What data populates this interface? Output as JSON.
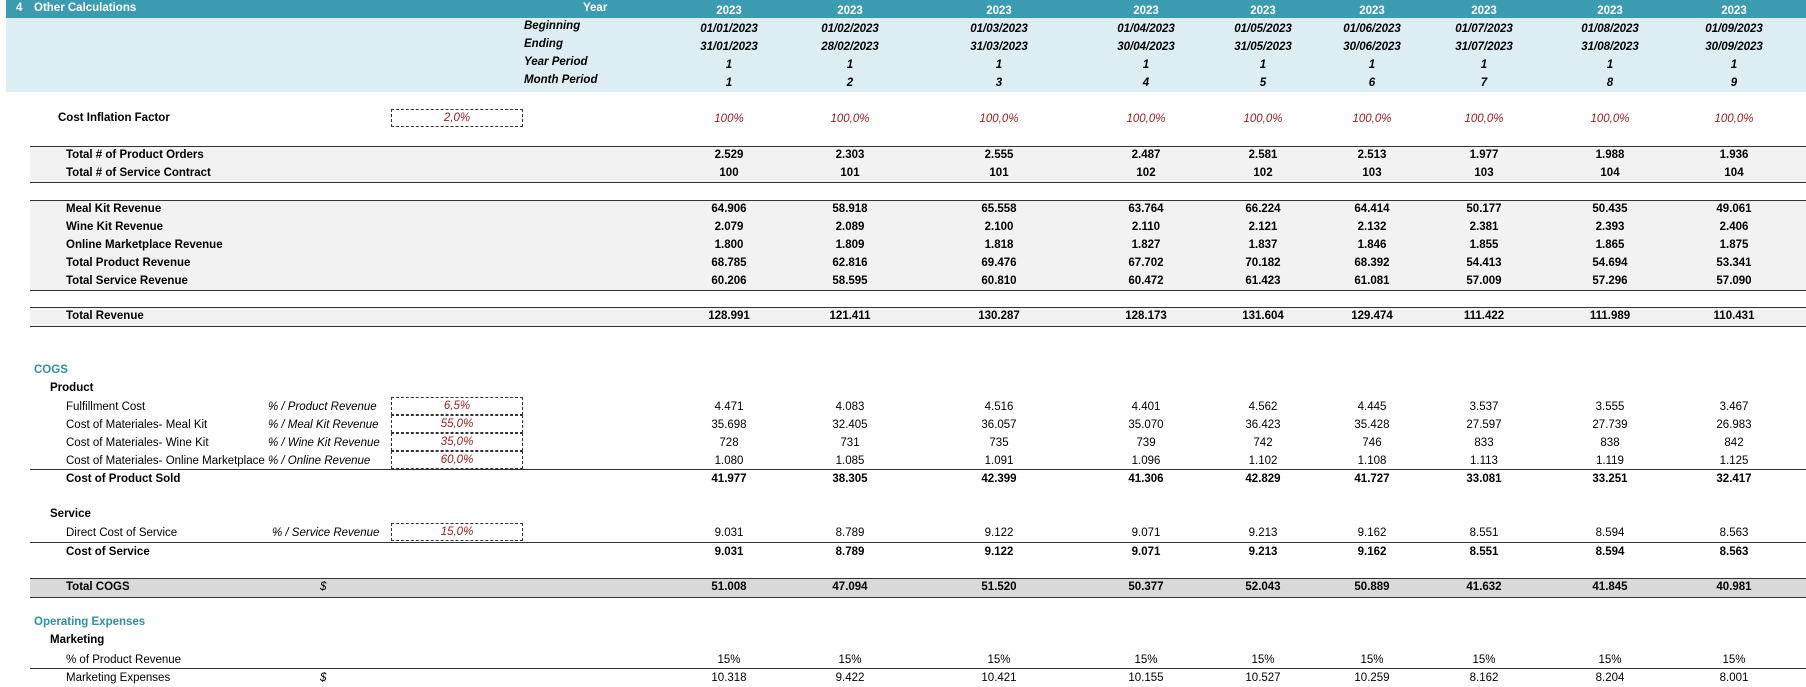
{
  "header": {
    "section_num": "4",
    "section_title": "Other Calculations",
    "year_label": "Year",
    "beginning_label": "Beginning",
    "ending_label": "Ending",
    "year_period_label": "Year Period",
    "month_period_label": "Month Period",
    "years": [
      "2023",
      "2023",
      "2023",
      "2023",
      "2023",
      "2023",
      "2023",
      "2023",
      "2023"
    ],
    "beginning": [
      "01/01/2023",
      "01/02/2023",
      "01/03/2023",
      "01/04/2023",
      "01/05/2023",
      "01/06/2023",
      "01/07/2023",
      "01/08/2023",
      "01/09/2023"
    ],
    "ending": [
      "31/01/2023",
      "28/02/2023",
      "31/03/2023",
      "30/04/2023",
      "31/05/2023",
      "30/06/2023",
      "31/07/2023",
      "31/08/2023",
      "30/09/2023"
    ],
    "year_period": [
      "1",
      "1",
      "1",
      "1",
      "1",
      "1",
      "1",
      "1",
      "1"
    ],
    "month_period": [
      "1",
      "2",
      "3",
      "4",
      "5",
      "6",
      "7",
      "8",
      "9"
    ]
  },
  "inflation": {
    "label": "Cost Inflation Factor",
    "input": "2,0%",
    "values": [
      "100%",
      "100,0%",
      "100,0%",
      "100,0%",
      "100,0%",
      "100,0%",
      "100,0%",
      "100,0%",
      "100,0%"
    ]
  },
  "orders": [
    {
      "label": "Total # of Product Orders",
      "values": [
        "2.529",
        "2.303",
        "2.555",
        "2.487",
        "2.581",
        "2.513",
        "1.977",
        "1.988",
        "1.936"
      ]
    },
    {
      "label": "Total # of Service Contract",
      "values": [
        "100",
        "101",
        "101",
        "102",
        "102",
        "103",
        "103",
        "104",
        "104"
      ]
    }
  ],
  "revenue": [
    {
      "label": "Meal Kit Revenue",
      "values": [
        "64.906",
        "58.918",
        "65.558",
        "63.764",
        "66.224",
        "64.414",
        "50.177",
        "50.435",
        "49.061"
      ]
    },
    {
      "label": "Wine Kit Revenue",
      "values": [
        "2.079",
        "2.089",
        "2.100",
        "2.110",
        "2.121",
        "2.132",
        "2.381",
        "2.393",
        "2.406"
      ]
    },
    {
      "label": "Online Marketplace Revenue",
      "values": [
        "1.800",
        "1.809",
        "1.818",
        "1.827",
        "1.837",
        "1.846",
        "1.855",
        "1.865",
        "1.875"
      ]
    },
    {
      "label": "Total Product Revenue",
      "values": [
        "68.785",
        "62.816",
        "69.476",
        "67.702",
        "70.182",
        "68.392",
        "54.413",
        "54.694",
        "53.341"
      ]
    },
    {
      "label": "Total Service Revenue",
      "values": [
        "60.206",
        "58.595",
        "60.810",
        "60.472",
        "61.423",
        "61.081",
        "57.009",
        "57.296",
        "57.090"
      ]
    }
  ],
  "total_revenue": {
    "label": "Total Revenue",
    "values": [
      "128.991",
      "121.411",
      "130.287",
      "128.173",
      "131.604",
      "129.474",
      "111.422",
      "111.989",
      "110.431"
    ]
  },
  "cogs": {
    "title": "COGS",
    "product_title": "Product",
    "product_rows": [
      {
        "label": "Fulfillment Cost",
        "basis": "% / Product Revenue",
        "input": "6,5%",
        "values": [
          "4.471",
          "4.083",
          "4.516",
          "4.401",
          "4.562",
          "4.445",
          "3.537",
          "3.555",
          "3.467"
        ]
      },
      {
        "label": "Cost of Materiales- Meal Kit",
        "basis": "% / Meal Kit Revenue",
        "input": "55,0%",
        "values": [
          "35.698",
          "32.405",
          "36.057",
          "35.070",
          "36.423",
          "35.428",
          "27.597",
          "27.739",
          "26.983"
        ]
      },
      {
        "label": "Cost of Materiales- Wine Kit",
        "basis": "% / Wine Kit Revenue",
        "input": "35,0%",
        "values": [
          "728",
          "731",
          "735",
          "739",
          "742",
          "746",
          "833",
          "838",
          "842"
        ]
      },
      {
        "label": "Cost of Materiales- Online Marketplace",
        "basis": "% / Online Revenue",
        "input": "60,0%",
        "values": [
          "1.080",
          "1.085",
          "1.091",
          "1.096",
          "1.102",
          "1.108",
          "1.113",
          "1.119",
          "1.125"
        ]
      }
    ],
    "product_total": {
      "label": "Cost of Product Sold",
      "values": [
        "41.977",
        "38.305",
        "42.399",
        "41.306",
        "42.829",
        "41.727",
        "33.081",
        "33.251",
        "32.417"
      ]
    },
    "service_title": "Service",
    "service_row": {
      "label": "Direct Cost of Service",
      "basis": "% / Service Revenue",
      "input": "15,0%",
      "values": [
        "9.031",
        "8.789",
        "9.122",
        "9.071",
        "9.213",
        "9.162",
        "8.551",
        "8.594",
        "8.563"
      ]
    },
    "service_total": {
      "label": "Cost of Service",
      "values": [
        "9.031",
        "8.789",
        "9.122",
        "9.071",
        "9.213",
        "9.162",
        "8.551",
        "8.594",
        "8.563"
      ]
    },
    "total": {
      "label": "Total COGS",
      "unit": "$",
      "values": [
        "51.008",
        "47.094",
        "51.520",
        "50.377",
        "52.043",
        "50.889",
        "41.632",
        "41.845",
        "40.981"
      ]
    }
  },
  "opex": {
    "title": "Operating Expenses",
    "marketing_title": "Marketing",
    "pct_row": {
      "label": "% of Product Revenue",
      "values": [
        "15%",
        "15%",
        "15%",
        "15%",
        "15%",
        "15%",
        "15%",
        "15%",
        "15%"
      ]
    },
    "exp_row": {
      "label": "Marketing Expenses",
      "unit": "$",
      "values": [
        "10.318",
        "9.422",
        "10.421",
        "10.155",
        "10.527",
        "10.259",
        "8.162",
        "8.204",
        "8.001"
      ]
    }
  }
}
